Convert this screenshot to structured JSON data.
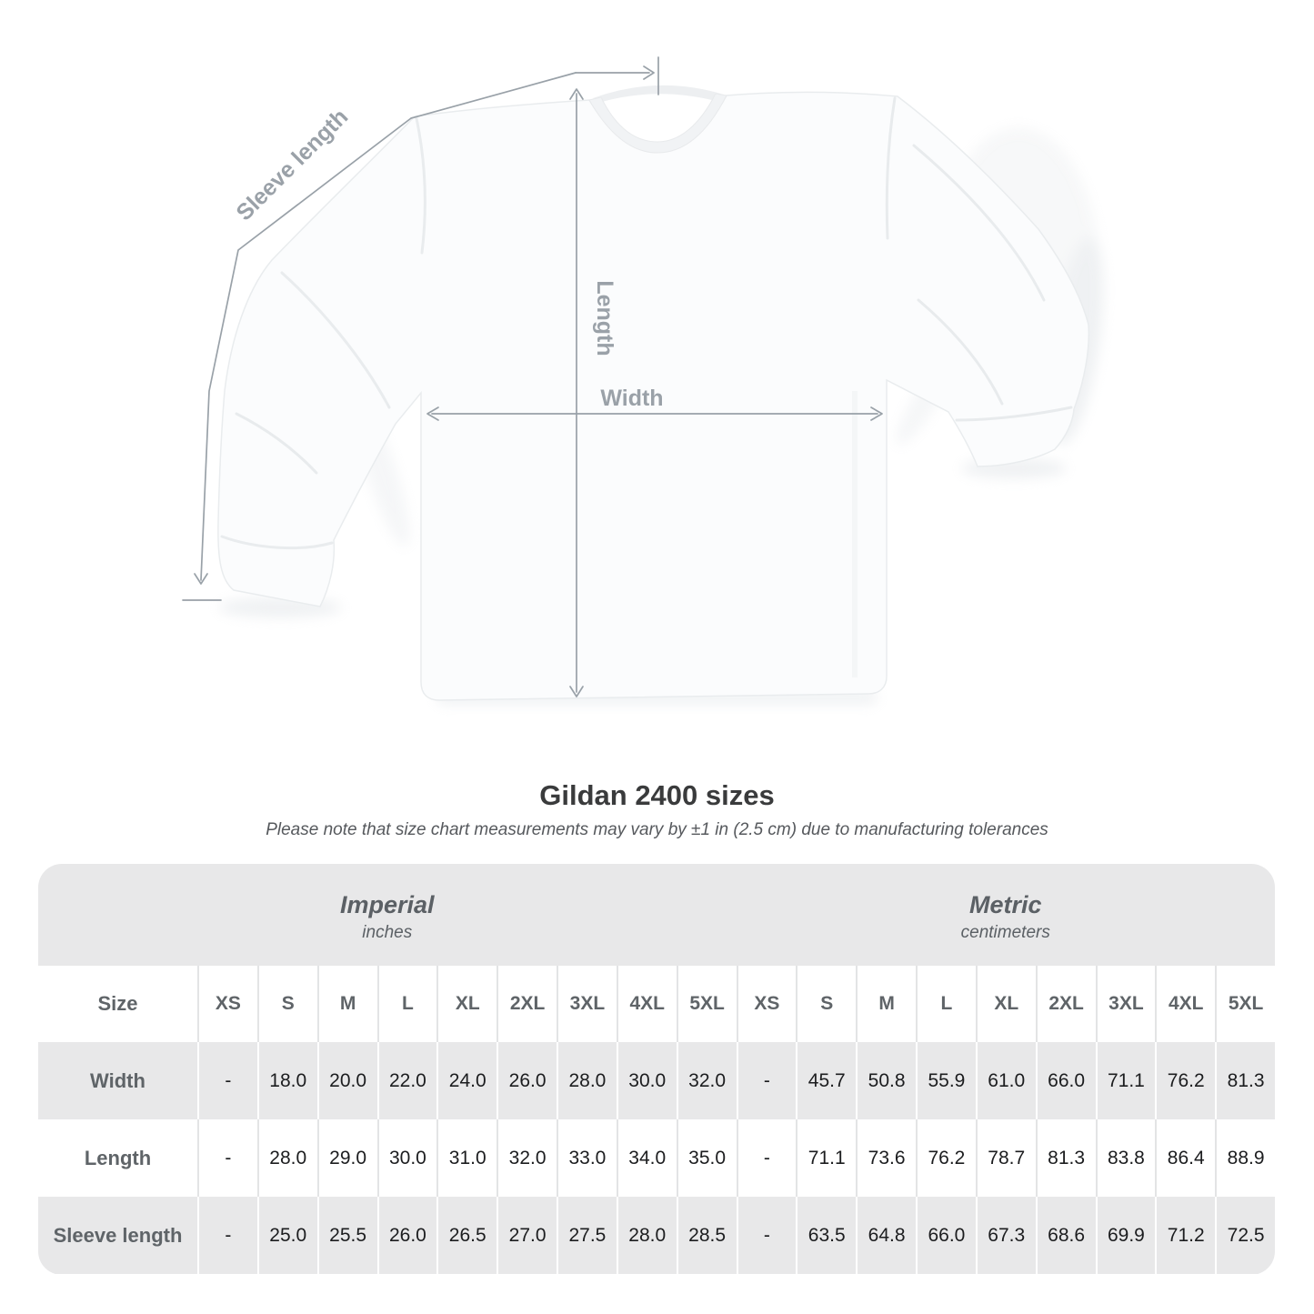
{
  "diagram": {
    "labels": {
      "sleeve_length": "Sleeve length",
      "length": "Length",
      "width": "Width"
    }
  },
  "caption": {
    "title": "Gildan 2400 sizes",
    "note": "Please note that size chart measurements may vary by ±1 in (2.5 cm) due to manufacturing tolerances"
  },
  "table": {
    "size_label": "Size",
    "sizes": [
      "XS",
      "S",
      "M",
      "L",
      "XL",
      "2XL",
      "3XL",
      "4XL",
      "5XL"
    ],
    "groups": [
      {
        "name": "Imperial",
        "unit": "inches"
      },
      {
        "name": "Metric",
        "unit": "centimeters"
      }
    ],
    "rows": [
      {
        "label": "Width",
        "imperial": [
          "-",
          "18.0",
          "20.0",
          "22.0",
          "24.0",
          "26.0",
          "28.0",
          "30.0",
          "32.0"
        ],
        "metric": [
          "-",
          "45.7",
          "50.8",
          "55.9",
          "61.0",
          "66.0",
          "71.1",
          "76.2",
          "81.3"
        ]
      },
      {
        "label": "Length",
        "imperial": [
          "-",
          "28.0",
          "29.0",
          "30.0",
          "31.0",
          "32.0",
          "33.0",
          "34.0",
          "35.0"
        ],
        "metric": [
          "-",
          "71.1",
          "73.6",
          "76.2",
          "78.7",
          "81.3",
          "83.8",
          "86.4",
          "88.9"
        ]
      },
      {
        "label": "Sleeve length",
        "imperial": [
          "-",
          "25.0",
          "25.5",
          "26.0",
          "26.5",
          "27.0",
          "27.5",
          "28.0",
          "28.5"
        ],
        "metric": [
          "-",
          "63.5",
          "64.8",
          "66.0",
          "67.3",
          "68.6",
          "69.9",
          "71.2",
          "72.5"
        ]
      }
    ]
  },
  "colors": {
    "accent-gray": "#e8e8e9",
    "annotation": "#99a1a8",
    "label-text": "#5f6468",
    "value-text": "#1c1d1f"
  }
}
